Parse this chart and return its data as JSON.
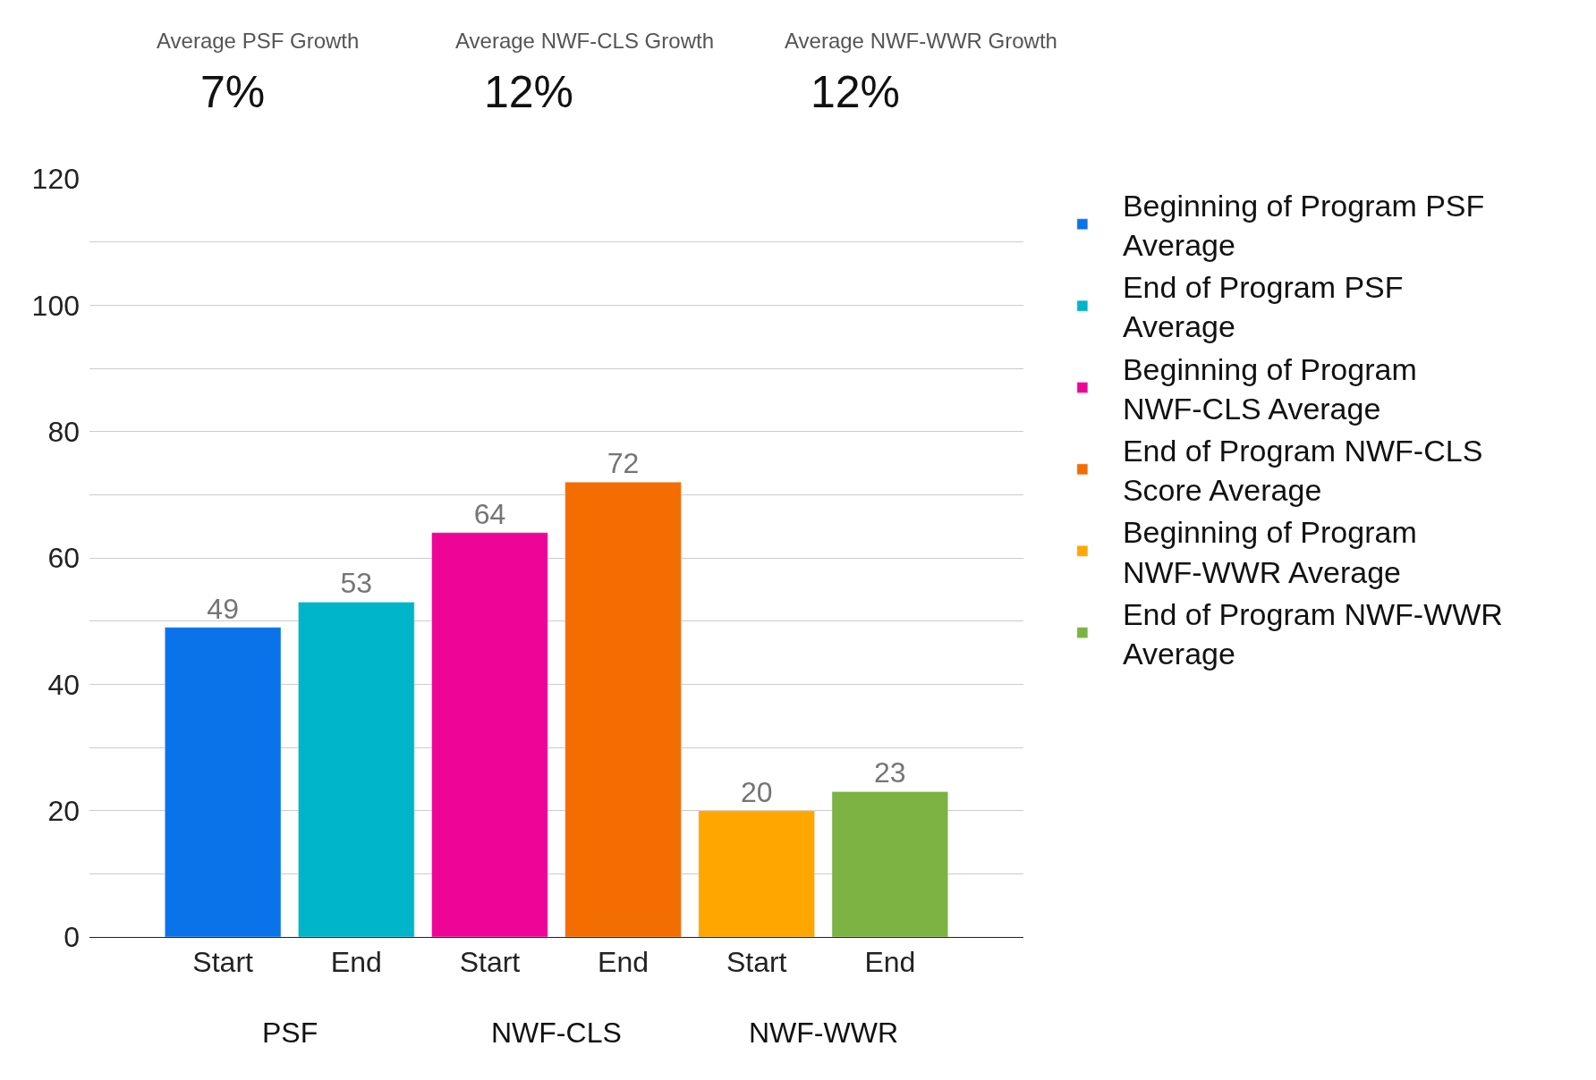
{
  "chart_data": {
    "type": "bar",
    "categories": [
      "Start",
      "End",
      "Start",
      "End",
      "Start",
      "End"
    ],
    "series": [
      {
        "name": "Beginning of Program PSF Average",
        "color": "#0a73ea",
        "values": [
          49,
          null,
          null,
          null,
          null,
          null
        ]
      },
      {
        "name": "End of Program PSF Average",
        "color": "#00b5c9",
        "values": [
          null,
          53,
          null,
          null,
          null,
          null
        ]
      },
      {
        "name": "Beginning of Program NWF-CLS Average",
        "color": "#ee0598",
        "values": [
          null,
          null,
          64,
          null,
          null,
          null
        ]
      },
      {
        "name": "End of Program NWF-CLS Score Average",
        "color": "#f46d00",
        "values": [
          null,
          null,
          null,
          72,
          null,
          null
        ]
      },
      {
        "name": "Beginning of Program NWF-WWR Average",
        "color": "#ffa600",
        "values": [
          null,
          null,
          null,
          null,
          20,
          null
        ]
      },
      {
        "name": "End of Program NWF-WWR Average",
        "color": "#7cb342",
        "values": [
          null,
          null,
          null,
          null,
          null,
          23
        ]
      }
    ],
    "annotations": [
      "Average PSF Growth",
      "7%",
      "Average NWF-CLS Growth",
      "12%",
      "Average NWF-WWR Growth",
      "12%",
      "PSF",
      "NWF-CLS",
      "NWF-WWR"
    ],
    "ylim": [
      0,
      120
    ],
    "yticks": [
      0,
      {
        "value": 10,
        "label": null
      },
      20,
      {
        "value": 30,
        "label": null
      },
      40,
      {
        "value": 50,
        "label": null
      },
      60,
      {
        "value": 70,
        "label": null
      },
      80,
      {
        "value": 90,
        "label": null
      },
      100,
      {
        "value": 110,
        "label": null
      },
      120
    ],
    "grid": "y",
    "legend": "top right",
    "data_labels": true
  }
}
